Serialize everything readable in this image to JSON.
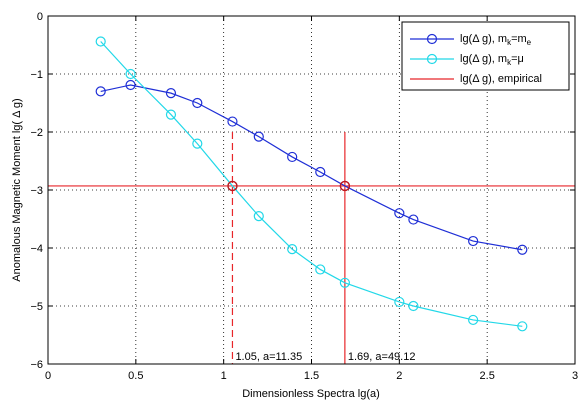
{
  "chart_data": {
    "type": "line",
    "xlabel": "Dimensionless Spectra lg(a)",
    "ylabel": "Anomalous Magnetic Moment lg( Δ g)",
    "xlim": [
      0,
      3
    ],
    "ylim": [
      -6,
      0
    ],
    "xticks": [
      0,
      0.5,
      1,
      1.5,
      2,
      2.5,
      3
    ],
    "yticks": [
      0,
      -1,
      -2,
      -3,
      -4,
      -5,
      -6
    ],
    "xtick_labels": [
      "0",
      "0.5",
      "1",
      "1.5",
      "2",
      "2.5",
      "3"
    ],
    "ytick_labels": [
      "0",
      "−1",
      "−2",
      "−3",
      "−4",
      "−5",
      "−6"
    ],
    "grid": true,
    "legend_position": "top-right",
    "series": [
      {
        "name": "lg(Δ g), m_k=m_e",
        "legend_base": "lg(Δ g), m",
        "legend_sub1": "k",
        "legend_mid": "=m",
        "legend_sub2": "e",
        "color": "#1f2fd6",
        "marker": "circle",
        "x": [
          0.3,
          0.47,
          0.7,
          0.85,
          1.05,
          1.2,
          1.39,
          1.55,
          1.69,
          2.0,
          2.08,
          2.42,
          2.7
        ],
        "y": [
          -1.3,
          -1.19,
          -1.33,
          -1.5,
          -1.82,
          -2.08,
          -2.43,
          -2.69,
          -2.93,
          -3.4,
          -3.51,
          -3.88,
          -4.03
        ]
      },
      {
        "name": "lg(Δ g), m_k=μ",
        "legend_base": "lg(Δ g), m",
        "legend_sub1": "k",
        "legend_mid": "=μ",
        "legend_sub2": "",
        "color": "#22d8e8",
        "marker": "circle",
        "x": [
          0.3,
          0.47,
          0.7,
          0.85,
          1.05,
          1.2,
          1.39,
          1.55,
          1.69,
          2.0,
          2.08,
          2.42,
          2.7
        ],
        "y": [
          -0.44,
          -1.0,
          -1.7,
          -2.2,
          -2.93,
          -3.45,
          -4.02,
          -4.37,
          -4.6,
          -4.93,
          -5.0,
          -5.24,
          -5.35
        ]
      },
      {
        "name": "lg(Δ g), empirical",
        "legend_base": "lg(Δ g), empirical",
        "color": "#e8262a",
        "y_constant": -2.93
      }
    ],
    "vertical_markers": [
      {
        "x": 1.05,
        "y_top": -2.0,
        "style": "dashed",
        "label": "1.05, a=11.35"
      },
      {
        "x": 1.69,
        "y_top": -2.0,
        "style": "solid",
        "label": "1.69, a=49.12"
      }
    ],
    "intersection_points": [
      {
        "x": 1.05,
        "y": -2.93
      },
      {
        "x": 1.69,
        "y": -2.93
      }
    ]
  }
}
